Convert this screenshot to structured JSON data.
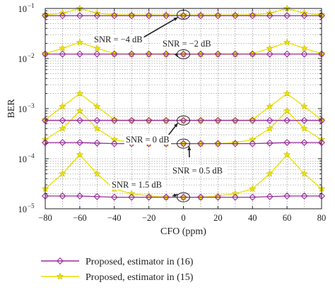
{
  "chart_data": {
    "type": "line",
    "xlabel": "CFO (ppm)",
    "ylabel": "BER",
    "xlim": [
      -80,
      80
    ],
    "ylim": [
      1e-05,
      0.1
    ],
    "yscale": "log",
    "grid": true,
    "legend_position": "bottom",
    "x_ticks": [
      -80,
      -60,
      -40,
      -20,
      0,
      20,
      40,
      60,
      80
    ],
    "x_tick_labels": [
      "−80",
      "−60",
      "−40",
      "−20",
      "0",
      "20",
      "40",
      "60",
      "80"
    ],
    "y_ticks": [
      {
        "value": 0.1,
        "base": "10",
        "exp": "−1"
      },
      {
        "value": 0.01,
        "base": "10",
        "exp": "−2"
      },
      {
        "value": 0.001,
        "base": "10",
        "exp": "−3"
      },
      {
        "value": 0.0001,
        "base": "10",
        "exp": "−4"
      },
      {
        "value": 1e-05,
        "base": "10",
        "exp": "−5"
      }
    ],
    "x": [
      -80,
      -70,
      -60,
      -50,
      -40,
      -30,
      -20,
      -10,
      0,
      10,
      20,
      30,
      40,
      50,
      60,
      70,
      80
    ],
    "series": [
      {
        "name": "Proposed, estimator in (16)",
        "color": "#9b2d9b",
        "marker": "diamond",
        "groups": [
          {
            "snr": -4,
            "values": [
              0.072,
              0.072,
              0.072,
              0.072,
              0.072,
              0.072,
              0.072,
              0.072,
              0.072,
              0.072,
              0.072,
              0.072,
              0.072,
              0.072,
              0.072,
              0.072,
              0.072
            ]
          },
          {
            "snr": -2,
            "values": [
              0.0123,
              0.0123,
              0.0123,
              0.0123,
              0.0123,
              0.0123,
              0.0123,
              0.0123,
              0.0123,
              0.0123,
              0.0123,
              0.0123,
              0.0123,
              0.0123,
              0.0123,
              0.0123,
              0.0123
            ]
          },
          {
            "snr": 0,
            "values": [
              0.00058,
              0.00058,
              0.00058,
              0.00058,
              0.00058,
              0.00058,
              0.00058,
              0.00058,
              0.00058,
              0.00058,
              0.00058,
              0.00058,
              0.00058,
              0.00058,
              0.00058,
              0.00058,
              0.00058
            ]
          },
          {
            "snr": 0.5,
            "values": [
              0.00021,
              0.00021,
              0.00021,
              0.000205,
              0.0002,
              0.0002,
              0.0002,
              0.0002,
              0.0002,
              0.0002,
              0.0002,
              0.0002,
              0.0002,
              0.000205,
              0.00021,
              0.00021,
              0.00021
            ]
          },
          {
            "snr": 1.5,
            "values": [
              1.8e-05,
              1.8e-05,
              1.8e-05,
              1.75e-05,
              1.7e-05,
              1.7e-05,
              1.7e-05,
              1.7e-05,
              1.7e-05,
              1.7e-05,
              1.7e-05,
              1.7e-05,
              1.7e-05,
              1.75e-05,
              1.8e-05,
              1.8e-05,
              1.8e-05
            ]
          }
        ]
      },
      {
        "name": "Proposed, estimator in (15)",
        "color": "#e8e000",
        "marker": "star",
        "groups": [
          {
            "snr": -4,
            "values": [
              0.075,
              0.08,
              0.1,
              0.08,
              0.075,
              0.074,
              0.074,
              0.074,
              0.074,
              0.074,
              0.074,
              0.074,
              0.075,
              0.08,
              0.1,
              0.08,
              0.075
            ]
          },
          {
            "snr": -2,
            "values": [
              0.0125,
              0.016,
              0.021,
              0.016,
              0.0125,
              0.0122,
              0.0122,
              0.0122,
              0.0122,
              0.0122,
              0.0122,
              0.0122,
              0.0125,
              0.016,
              0.021,
              0.016,
              0.0125
            ]
          },
          {
            "snr": 0,
            "values": [
              0.0006,
              0.0011,
              0.002,
              0.0011,
              0.0006,
              0.00058,
              0.00058,
              0.00058,
              0.00058,
              0.00058,
              0.00058,
              0.00058,
              0.0006,
              0.0011,
              0.002,
              0.0011,
              0.0006
            ]
          },
          {
            "snr": 0.5,
            "values": [
              0.00024,
              0.0004,
              0.0009,
              0.0004,
              0.00024,
              0.00021,
              0.0002,
              0.0002,
              0.0002,
              0.0002,
              0.0002,
              0.00021,
              0.00024,
              0.0004,
              0.0009,
              0.0004,
              0.00024
            ]
          },
          {
            "snr": 1.5,
            "values": [
              2.5e-05,
              5e-05,
              0.00012,
              5e-05,
              2.5e-05,
              2e-05,
              1.8e-05,
              1.7e-05,
              1.7e-05,
              1.7e-05,
              1.8e-05,
              2e-05,
              2.5e-05,
              5e-05,
              0.00012,
              5e-05,
              2.5e-05
            ]
          }
        ]
      }
    ],
    "annotations": [
      {
        "text": "SNR = −4 dB",
        "target_x": 0,
        "target_y": 0.075
      },
      {
        "text": "SNR = −2 dB",
        "target_x": 0,
        "target_y": 0.0122
      },
      {
        "text": "SNR = 0 dB",
        "target_x": 0,
        "target_y": 0.00058
      },
      {
        "text": "SNR = 0.5 dB",
        "target_x": 0,
        "target_y": 0.0002
      },
      {
        "text": "SNR = 1.5 dB",
        "target_x": 0,
        "target_y": 1.7e-05
      }
    ]
  }
}
